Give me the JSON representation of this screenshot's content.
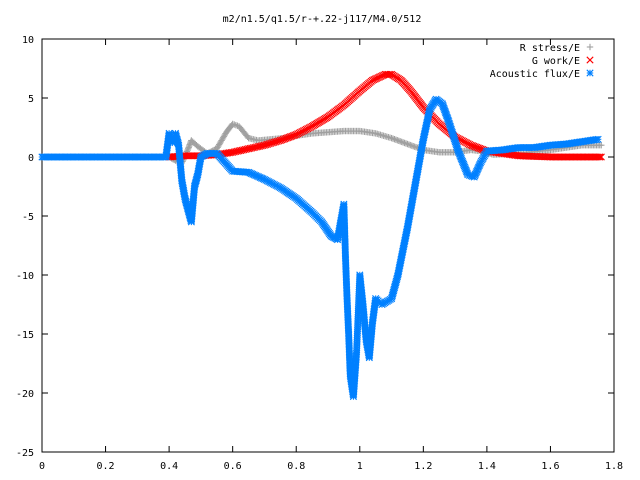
{
  "chart_data": {
    "type": "scatter",
    "title": "m2/n1.5/q1.5/r-+.22-j117/M4.0/512",
    "xlabel": "",
    "ylabel": "",
    "xlim": [
      0,
      1.8
    ],
    "ylim": [
      -25,
      10
    ],
    "x_ticks": [
      "0",
      "0.2",
      "0.4",
      "0.6",
      "0.8",
      "1",
      "1.2",
      "1.4",
      "1.6",
      "1.8"
    ],
    "y_ticks": [
      "10",
      "5",
      "0",
      "-5",
      "-10",
      "-15",
      "-20",
      "-25"
    ],
    "grid": false,
    "legend_position": "top-right",
    "series": [
      {
        "name": "R stress/E",
        "marker": "plus",
        "color": "#a0a0a0",
        "points": [
          [
            0.4,
            0.0
          ],
          [
            0.42,
            -0.3
          ],
          [
            0.44,
            -0.5
          ],
          [
            0.46,
            0.7
          ],
          [
            0.47,
            1.4
          ],
          [
            0.49,
            0.9
          ],
          [
            0.52,
            0.3
          ],
          [
            0.55,
            0.7
          ],
          [
            0.58,
            2.1
          ],
          [
            0.6,
            2.8
          ],
          [
            0.62,
            2.6
          ],
          [
            0.65,
            1.6
          ],
          [
            0.68,
            1.4
          ],
          [
            0.72,
            1.5
          ],
          [
            0.76,
            1.6
          ],
          [
            0.8,
            1.8
          ],
          [
            0.85,
            2.0
          ],
          [
            0.9,
            2.1
          ],
          [
            0.95,
            2.2
          ],
          [
            1.0,
            2.2
          ],
          [
            1.05,
            2.0
          ],
          [
            1.1,
            1.6
          ],
          [
            1.15,
            1.1
          ],
          [
            1.2,
            0.6
          ],
          [
            1.25,
            0.4
          ],
          [
            1.3,
            0.4
          ],
          [
            1.35,
            0.6
          ],
          [
            1.38,
            0.5
          ],
          [
            1.42,
            0.2
          ],
          [
            1.5,
            0.3
          ],
          [
            1.6,
            0.6
          ],
          [
            1.7,
            1.0
          ],
          [
            1.76,
            1.0
          ]
        ]
      },
      {
        "name": "G work/E",
        "marker": "cross",
        "color": "#ff0000",
        "points": [
          [
            0.4,
            0.0
          ],
          [
            0.45,
            0.1
          ],
          [
            0.5,
            0.1
          ],
          [
            0.55,
            0.2
          ],
          [
            0.6,
            0.4
          ],
          [
            0.65,
            0.7
          ],
          [
            0.7,
            1.0
          ],
          [
            0.75,
            1.4
          ],
          [
            0.8,
            1.9
          ],
          [
            0.85,
            2.6
          ],
          [
            0.9,
            3.4
          ],
          [
            0.95,
            4.4
          ],
          [
            1.0,
            5.6
          ],
          [
            1.04,
            6.5
          ],
          [
            1.08,
            7.0
          ],
          [
            1.1,
            7.0
          ],
          [
            1.13,
            6.5
          ],
          [
            1.16,
            5.6
          ],
          [
            1.2,
            4.2
          ],
          [
            1.25,
            2.8
          ],
          [
            1.3,
            1.7
          ],
          [
            1.35,
            1.0
          ],
          [
            1.4,
            0.5
          ],
          [
            1.45,
            0.3
          ],
          [
            1.5,
            0.1
          ],
          [
            1.6,
            0.0
          ],
          [
            1.7,
            0.0
          ],
          [
            1.76,
            0.0
          ]
        ]
      },
      {
        "name": "Acoustic flux/E",
        "marker": "star",
        "color": "#0080ff",
        "points": [
          [
            0.0,
            0.0
          ],
          [
            0.1,
            0.0
          ],
          [
            0.2,
            0.0
          ],
          [
            0.3,
            0.0
          ],
          [
            0.39,
            0.0
          ],
          [
            0.4,
            2.0
          ],
          [
            0.41,
            1.2
          ],
          [
            0.42,
            2.0
          ],
          [
            0.43,
            1.0
          ],
          [
            0.44,
            -2.0
          ],
          [
            0.45,
            -3.5
          ],
          [
            0.46,
            -4.5
          ],
          [
            0.47,
            -5.5
          ],
          [
            0.48,
            -2.5
          ],
          [
            0.49,
            -1.5
          ],
          [
            0.5,
            0.0
          ],
          [
            0.52,
            0.3
          ],
          [
            0.55,
            0.3
          ],
          [
            0.58,
            -0.6
          ],
          [
            0.6,
            -1.2
          ],
          [
            0.65,
            -1.3
          ],
          [
            0.7,
            -1.9
          ],
          [
            0.75,
            -2.6
          ],
          [
            0.8,
            -3.5
          ],
          [
            0.85,
            -4.7
          ],
          [
            0.88,
            -5.5
          ],
          [
            0.91,
            -6.7
          ],
          [
            0.93,
            -7.0
          ],
          [
            0.94,
            -5.5
          ],
          [
            0.95,
            -4.0
          ],
          [
            0.955,
            -8.5
          ],
          [
            0.96,
            -12.0
          ],
          [
            0.965,
            -15.0
          ],
          [
            0.97,
            -18.5
          ],
          [
            0.98,
            -20.3
          ],
          [
            0.99,
            -16.5
          ],
          [
            1.0,
            -10.0
          ],
          [
            1.01,
            -12.5
          ],
          [
            1.02,
            -15.5
          ],
          [
            1.03,
            -17.0
          ],
          [
            1.04,
            -14.0
          ],
          [
            1.05,
            -12.0
          ],
          [
            1.07,
            -12.5
          ],
          [
            1.1,
            -12.0
          ],
          [
            1.12,
            -10.0
          ],
          [
            1.15,
            -6.0
          ],
          [
            1.18,
            -1.5
          ],
          [
            1.2,
            1.5
          ],
          [
            1.22,
            4.0
          ],
          [
            1.24,
            4.9
          ],
          [
            1.26,
            4.5
          ],
          [
            1.28,
            3.0
          ],
          [
            1.31,
            0.5
          ],
          [
            1.34,
            -1.5
          ],
          [
            1.36,
            -1.7
          ],
          [
            1.38,
            -0.5
          ],
          [
            1.4,
            0.5
          ],
          [
            1.45,
            0.6
          ],
          [
            1.5,
            0.8
          ],
          [
            1.55,
            0.8
          ],
          [
            1.6,
            1.0
          ],
          [
            1.65,
            1.1
          ],
          [
            1.7,
            1.3
          ],
          [
            1.75,
            1.5
          ]
        ]
      }
    ]
  }
}
